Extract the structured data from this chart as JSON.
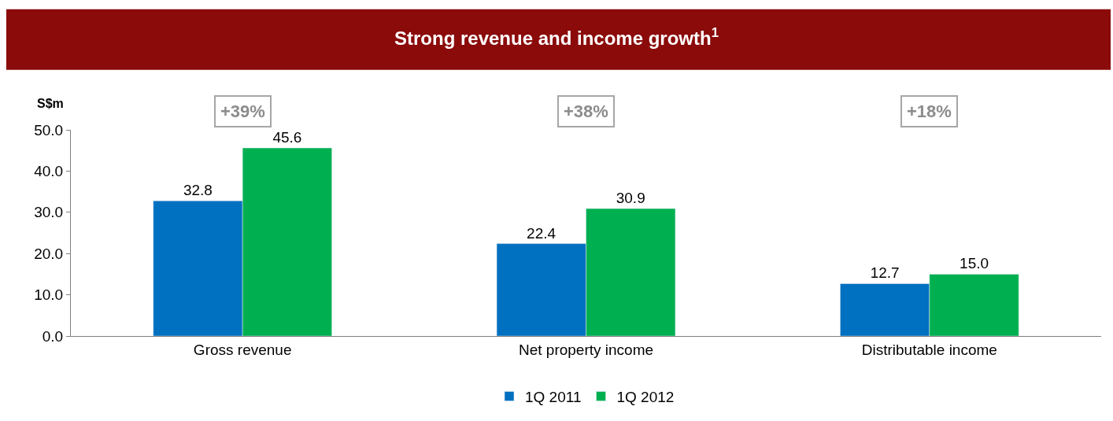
{
  "chart_data": {
    "type": "bar",
    "title": "Strong revenue and income growth$^{1}$",
    "ylabel": "S$m",
    "categories": [
      "Gross revenue",
      "Net property income",
      "Distributable income"
    ],
    "series": [
      {
        "name": "1Q 2011",
        "color": "#0070c0",
        "values": [
          32.8,
          22.4,
          12.7
        ],
        "value_labels": [
          "32.8",
          "22.4",
          "12.7"
        ]
      },
      {
        "name": "1Q 2012",
        "color": "#00b050",
        "values": [
          45.6,
          30.9,
          15.0
        ],
        "value_labels": [
          "45.6",
          "30.9",
          "15.0"
        ]
      }
    ],
    "ylim": [
      0,
      50
    ],
    "yticks": [
      {
        "value": 0,
        "label": "0.0"
      },
      {
        "value": 10,
        "label": "10.0"
      },
      {
        "value": 20,
        "label": "20.0"
      },
      {
        "value": 30,
        "label": "30.0"
      },
      {
        "value": 40,
        "label": "40.0"
      },
      {
        "value": 50,
        "label": "50.0"
      }
    ],
    "annotations": [
      "+39%",
      "+38%",
      "+18%"
    ],
    "legend": "bottom"
  }
}
